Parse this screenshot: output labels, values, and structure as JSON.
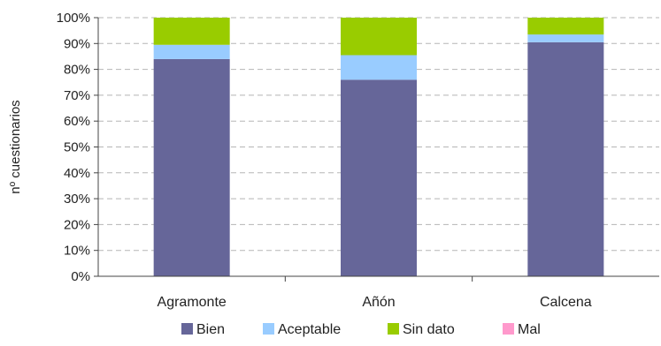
{
  "chart_data": {
    "type": "bar",
    "stacked": true,
    "percent": true,
    "title": "",
    "xlabel": "",
    "ylabel": "nº cuestionarios",
    "ylim": [
      0,
      100
    ],
    "y_ticks": [
      "0%",
      "10%",
      "20%",
      "30%",
      "40%",
      "50%",
      "60%",
      "70%",
      "80%",
      "90%",
      "100%"
    ],
    "categories": [
      "Agramonte",
      "Añón",
      "Calcena"
    ],
    "series": [
      {
        "name": "Bien",
        "color": "#666699",
        "values": [
          84,
          76,
          90.5
        ]
      },
      {
        "name": "Aceptable",
        "color": "#99ccff",
        "values": [
          5.5,
          9.5,
          3
        ]
      },
      {
        "name": "Sin dato",
        "color": "#99cc00",
        "values": [
          10.5,
          14.5,
          6.5
        ]
      },
      {
        "name": "Mal",
        "color": "#ff99cc",
        "values": [
          0,
          0,
          0
        ]
      }
    ],
    "grid": true,
    "grid_style": "dashed",
    "legend_position": "bottom"
  }
}
